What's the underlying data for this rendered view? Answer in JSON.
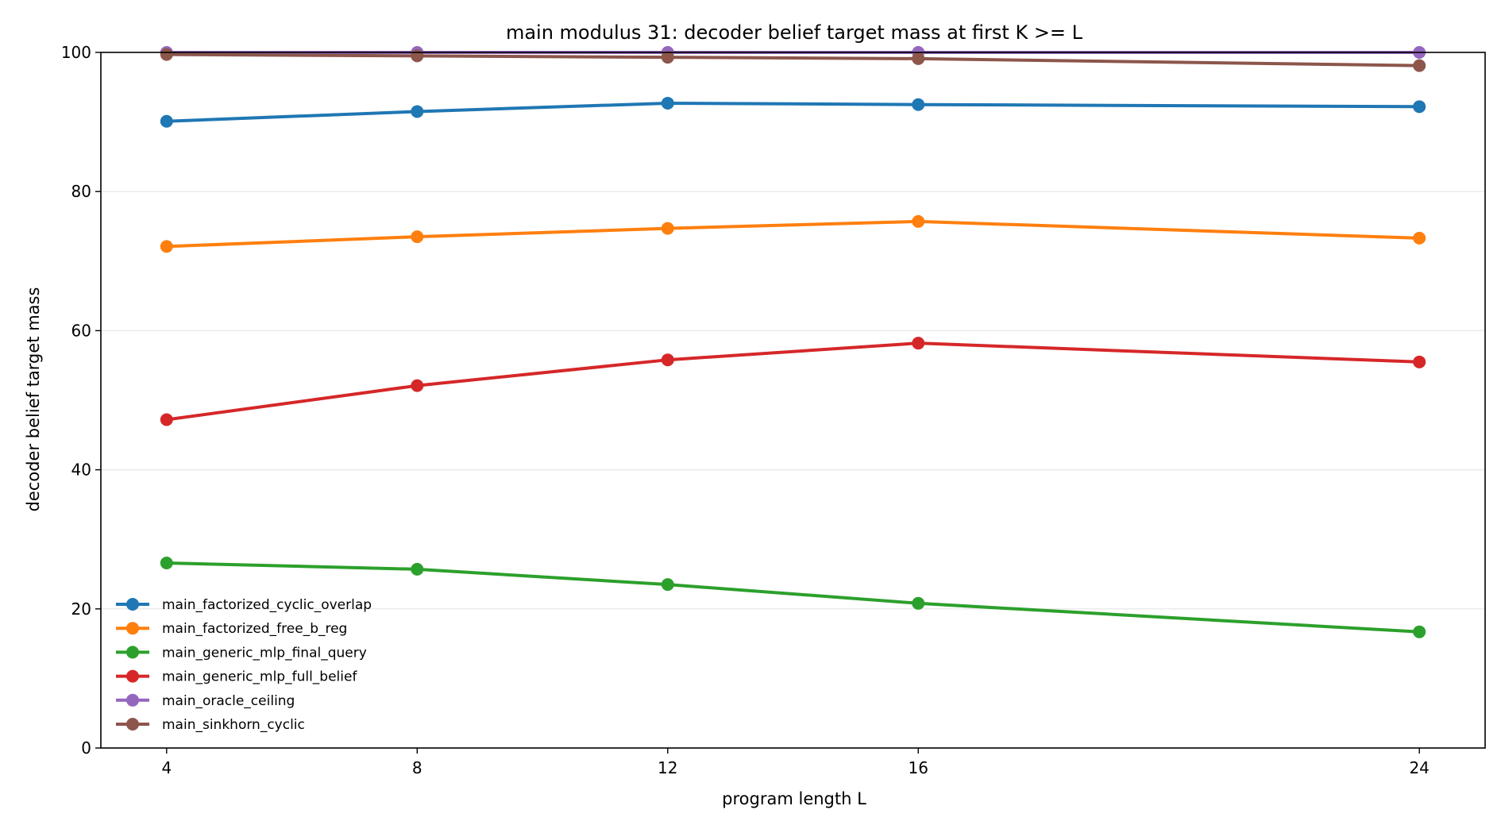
{
  "chart_data": {
    "type": "line",
    "title": "main modulus 31: decoder belief target mass at first K >= L",
    "xlabel": "program length L",
    "ylabel": "decoder belief target mass",
    "x": [
      4,
      8,
      12,
      16,
      24
    ],
    "xticks": [
      "4",
      "8",
      "12",
      "16",
      "24"
    ],
    "yticks": [
      "0",
      "20",
      "40",
      "60",
      "80",
      "100"
    ],
    "xlim": [
      2.95,
      25.05
    ],
    "ylim": [
      0,
      100
    ],
    "grid": "horizontal",
    "legend_position": "lower-left",
    "series": [
      {
        "name": "main_factorized_cyclic_overlap",
        "color": "#1f77b4",
        "values": [
          90.1,
          91.5,
          92.7,
          92.5,
          92.2
        ]
      },
      {
        "name": "main_factorized_free_b_reg",
        "color": "#ff7f0e",
        "values": [
          72.1,
          73.5,
          74.7,
          75.7,
          73.3
        ]
      },
      {
        "name": "main_generic_mlp_final_query",
        "color": "#2ca02c",
        "values": [
          26.6,
          25.7,
          23.5,
          20.8,
          16.7
        ]
      },
      {
        "name": "main_generic_mlp_full_belief",
        "color": "#d62728",
        "values": [
          47.2,
          52.1,
          55.8,
          58.2,
          55.5
        ]
      },
      {
        "name": "main_oracle_ceiling",
        "color": "#9467bd",
        "values": [
          100.0,
          100.0,
          100.0,
          100.0,
          100.0
        ]
      },
      {
        "name": "main_sinkhorn_cyclic",
        "color": "#8c564b",
        "values": [
          99.7,
          99.5,
          99.3,
          99.1,
          98.1
        ]
      }
    ]
  }
}
